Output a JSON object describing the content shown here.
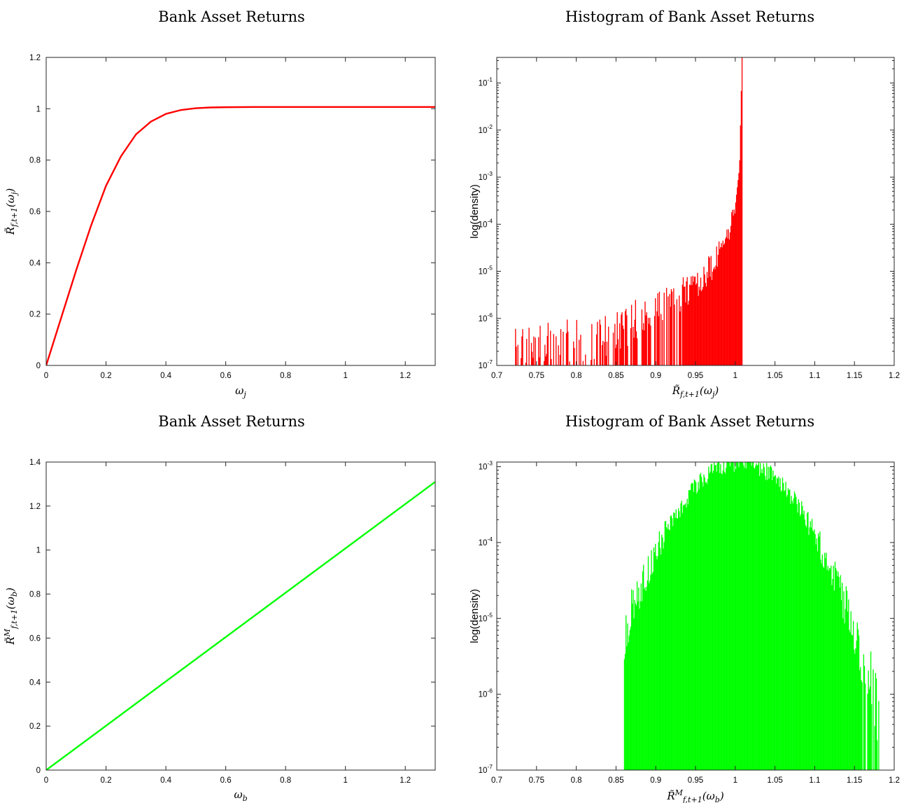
{
  "chart_data": [
    {
      "type": "line",
      "title": "Bank Asset Returns",
      "xlabel": "ω_j",
      "ylabel": "R̃_{f,t+1}(ω_j)",
      "xlim": [
        0,
        1.3
      ],
      "ylim": [
        0,
        1.2
      ],
      "xticks": [
        0,
        0.2,
        0.4,
        0.6,
        0.8,
        1,
        1.2
      ],
      "yticks": [
        0,
        0.2,
        0.4,
        0.6,
        0.8,
        1,
        1.2
      ],
      "xtick_labels": [
        "0",
        "0.2",
        "0.4",
        "0.6",
        "0.8",
        "1",
        "1.2"
      ],
      "ytick_labels": [
        "0",
        "0.2",
        "0.4",
        "0.6",
        "0.8",
        "1",
        "1.2"
      ],
      "series": [
        {
          "color": "#ff0000",
          "x": [
            0,
            0.05,
            0.1,
            0.15,
            0.2,
            0.25,
            0.3,
            0.35,
            0.4,
            0.45,
            0.5,
            0.55,
            0.6,
            0.7,
            0.8,
            0.9,
            1.0,
            1.1,
            1.2,
            1.3
          ],
          "y": [
            0,
            0.185,
            0.37,
            0.545,
            0.7,
            0.815,
            0.9,
            0.95,
            0.98,
            0.995,
            1.002,
            1.005,
            1.006,
            1.007,
            1.007,
            1.007,
            1.007,
            1.007,
            1.007,
            1.007
          ]
        }
      ],
      "grid": false
    },
    {
      "type": "histogram",
      "title": "Histogram of Bank Asset Returns",
      "xlabel": "R̃_{f,t+1}(ω_j)",
      "ylabel": "log(density)",
      "xlim": [
        0.7,
        1.2
      ],
      "ylim": [
        1e-07,
        0.35
      ],
      "yscale": "log",
      "xticks": [
        0.7,
        0.75,
        0.8,
        0.85,
        0.9,
        0.95,
        1,
        1.05,
        1.1,
        1.15,
        1.2
      ],
      "xtick_labels": [
        "0.7",
        "0.75",
        "0.8",
        "0.85",
        "0.9",
        "0.95",
        "1",
        "1.05",
        "1.1",
        "1.15",
        "1.2"
      ],
      "yticks": [
        -7,
        -6,
        -5,
        -4,
        -3,
        -2,
        -1
      ],
      "series": [
        {
          "color": "#ff0000",
          "profile": {
            "x": [
              0.72,
              0.75,
              0.8,
              0.85,
              0.9,
              0.92,
              0.95,
              0.97,
              0.98,
              0.99,
              1.0,
              1.005,
              1.008
            ],
            "log10_density": [
              -6.7,
              -6.65,
              -6.5,
              -6.25,
              -5.85,
              -5.6,
              -5.25,
              -4.9,
              -4.6,
              -4.25,
              -3.6,
              -2.6,
              -0.45
            ]
          },
          "x_min": 0.72,
          "x_max": 1.008
        }
      ],
      "grid": false
    },
    {
      "type": "line",
      "title": "Bank Asset Returns",
      "xlabel": "ω_b",
      "ylabel": "R̃^M_{f,t+1}(ω_b)",
      "xlim": [
        0,
        1.3
      ],
      "ylim": [
        0,
        1.4
      ],
      "xticks": [
        0,
        0.2,
        0.4,
        0.6,
        0.8,
        1,
        1.2
      ],
      "yticks": [
        0,
        0.2,
        0.4,
        0.6,
        0.8,
        1,
        1.2,
        1.4
      ],
      "xtick_labels": [
        "0",
        "0.2",
        "0.4",
        "0.6",
        "0.8",
        "1",
        "1.2"
      ],
      "ytick_labels": [
        "0",
        "0.2",
        "0.4",
        "0.6",
        "0.8",
        "1",
        "1.2",
        "1.4"
      ],
      "series": [
        {
          "color": "#00ff00",
          "x": [
            0,
            1.3
          ],
          "y": [
            0,
            1.31
          ]
        }
      ],
      "grid": false
    },
    {
      "type": "histogram",
      "title": "Histogram of Bank Asset Returns",
      "xlabel": "R̃^M_{f,t+1}(ω_b)",
      "ylabel": "log(density)",
      "xlim": [
        0.7,
        1.2
      ],
      "ylim": [
        1e-07,
        0.00115
      ],
      "yscale": "log",
      "xticks": [
        0.7,
        0.75,
        0.8,
        0.85,
        0.9,
        0.95,
        1,
        1.05,
        1.1,
        1.15,
        1.2
      ],
      "xtick_labels": [
        "0.7",
        "0.75",
        "0.8",
        "0.85",
        "0.9",
        "0.95",
        "1",
        "1.05",
        "1.1",
        "1.15",
        "1.2"
      ],
      "yticks": [
        -7,
        -6,
        -5,
        -4,
        -3
      ],
      "series": [
        {
          "color": "#00ff00",
          "distribution": {
            "mean": 1.005,
            "sd": 0.045,
            "peak": 0.00115
          },
          "x_min": 0.86,
          "x_max": 1.18
        }
      ],
      "grid": false
    }
  ]
}
